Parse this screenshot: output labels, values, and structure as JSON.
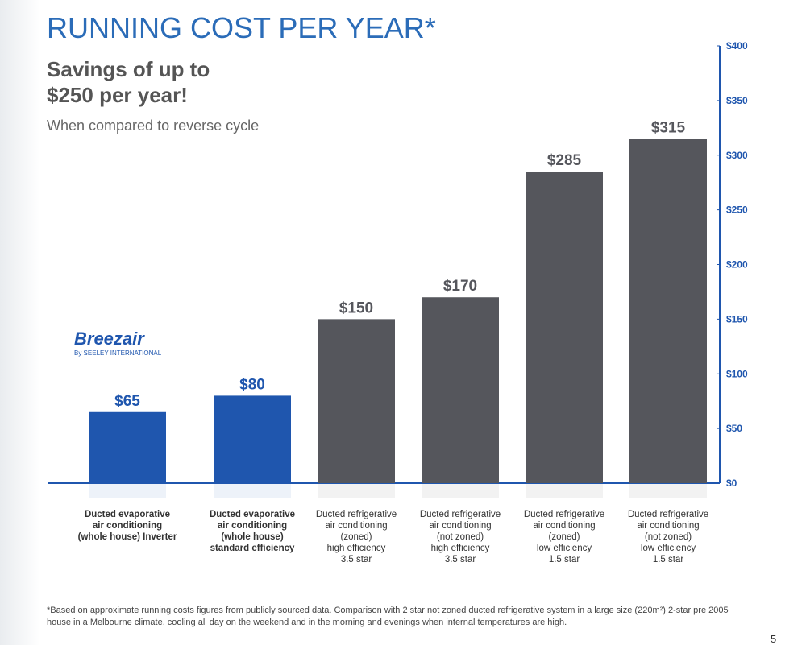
{
  "title": "RUNNING COST PER YEAR*",
  "subtitle": "Savings of up to\n$250 per year!",
  "comparison_note": "When compared to reverse cycle",
  "logo": {
    "name": "Breezair",
    "byline": "By SEELEY INTERNATIONAL"
  },
  "footnote": "*Based on approximate running costs figures from publicly sourced data. Comparison with 2 star not zoned ducted refrigerative system in a large size (220m²) 2-star pre 2005 house in a Melbourne climate, cooling all day on the weekend and in the morning and evenings when internal temperatures are high.",
  "page_number": "5",
  "chart_data": {
    "type": "bar",
    "categories": [
      "Ducted evaporative\nair conditioning\n(whole house) Inverter",
      "Ducted evaporative\nair conditioning\n(whole house)\nstandard efficiency",
      "Ducted refrigerative\nair conditioning\n(zoned)\nhigh efficiency\n3.5 star",
      "Ducted refrigerative\nair conditioning\n(not zoned)\nhigh efficiency\n3.5 star",
      "Ducted refrigerative\nair conditioning\n(zoned)\nlow efficiency\n1.5 star",
      "Ducted refrigerative\nair conditioning\n(not zoned)\nlow efficiency\n1.5 star"
    ],
    "values": [
      65,
      80,
      150,
      170,
      285,
      315
    ],
    "value_labels": [
      "$65",
      "$80",
      "$150",
      "$170",
      "$285",
      "$315"
    ],
    "colors": [
      "#1f56ae",
      "#1f56ae",
      "#55565c",
      "#55565c",
      "#55565c",
      "#55565c"
    ],
    "ylim": [
      0,
      400
    ],
    "yticks": [
      {
        "value": 0,
        "label": "$0"
      },
      {
        "value": 50,
        "label": "$50"
      },
      {
        "value": 100,
        "label": "$100"
      },
      {
        "value": 150,
        "label": "$150"
      },
      {
        "value": 200,
        "label": "$200"
      },
      {
        "value": 250,
        "label": "$250"
      },
      {
        "value": 300,
        "label": "$300"
      },
      {
        "value": 350,
        "label": "$350"
      },
      {
        "value": 400,
        "label": "$400"
      }
    ],
    "axis_color": "#1f56ae"
  }
}
